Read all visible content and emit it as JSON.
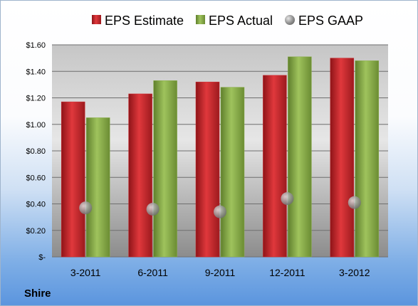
{
  "colors": {
    "estimate": "#cc2a2f",
    "actual": "#8aae4a",
    "gaap": "#a9a9a9"
  },
  "brand": "Shire",
  "chart_data": {
    "type": "bar",
    "categories": [
      "3-2011",
      "6-2011",
      "9-2011",
      "12-2011",
      "3-2012"
    ],
    "series": [
      {
        "name": "EPS Estimate",
        "type": "bar",
        "values": [
          1.17,
          1.23,
          1.32,
          1.37,
          1.5
        ]
      },
      {
        "name": "EPS Actual",
        "type": "bar",
        "values": [
          1.05,
          1.33,
          1.28,
          1.51,
          1.48
        ]
      },
      {
        "name": "EPS GAAP",
        "type": "scatter",
        "values": [
          0.37,
          0.36,
          0.34,
          0.44,
          0.41
        ]
      }
    ],
    "ylim": [
      0,
      1.6
    ],
    "yticks": [
      0,
      0.2,
      0.4,
      0.6,
      0.8,
      1.0,
      1.2,
      1.4,
      1.6
    ],
    "ytick_labels": [
      "$-",
      "$0.20",
      "$0.40",
      "$0.60",
      "$0.80",
      "$1.00",
      "$1.20",
      "$1.40",
      "$1.60"
    ],
    "legend_position": "top",
    "grid": true
  }
}
